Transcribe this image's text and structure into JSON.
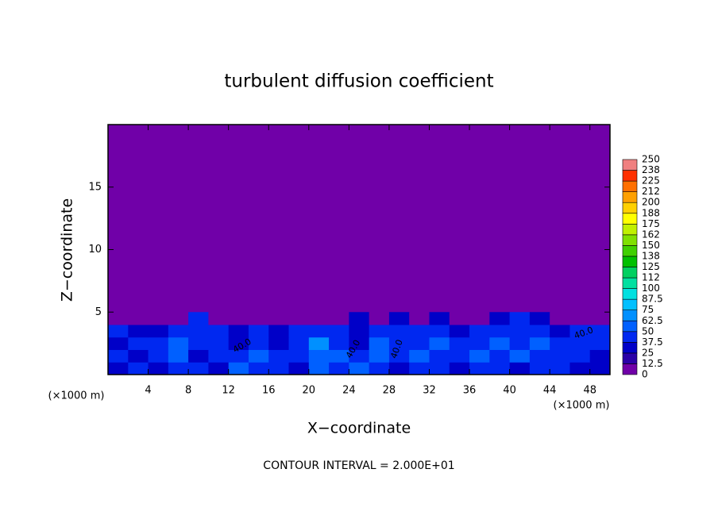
{
  "chart_data": {
    "type": "contour",
    "title": "turbulent diffusion coefficient",
    "x_label": "X−coordinate",
    "y_label": "Z−coordinate",
    "x_unit": "(×1000 m)",
    "y_unit": "(×1000 m)",
    "footer": "CONTOUR INTERVAL = 2.000E+01",
    "xlim": [
      0,
      50
    ],
    "ylim": [
      0,
      20
    ],
    "xticks": [
      4,
      8,
      12,
      16,
      20,
      24,
      28,
      32,
      36,
      40,
      44,
      48
    ],
    "yticks": [
      5,
      10,
      15
    ],
    "background_color": "#7000a8",
    "levels": [
      0,
      {
        "value": 12.5,
        "label": "12.5"
      },
      25,
      {
        "value": 37.5,
        "label": "37.5"
      },
      50,
      {
        "value": 62.5,
        "label": "62.5"
      },
      75,
      {
        "value": 87.5,
        "label": "87.5"
      },
      100,
      {
        "value": 112.5,
        "label": "112"
      },
      125,
      {
        "value": 137.5,
        "label": "138"
      },
      150,
      {
        "value": 162.5,
        "label": "162"
      },
      175,
      {
        "value": 187.5,
        "label": "188"
      },
      200,
      {
        "value": 212.5,
        "label": "212"
      },
      225,
      {
        "value": 237.5,
        "label": "238"
      },
      250
    ],
    "level_colors": [
      "#7000a8",
      "#2a00a8",
      "#0000c8",
      "#0028f0",
      "#0060ff",
      "#0090ff",
      "#00c0ff",
      "#00e0e0",
      "#00e0a0",
      "#00d060",
      "#00c000",
      "#40d000",
      "#80e000",
      "#c0f000",
      "#ffff00",
      "#ffd000",
      "#ffa000",
      "#ff7000",
      "#ff3000",
      "#f08080"
    ],
    "field_x_step": 2,
    "field_z_step": 1,
    "field": [
      [
        30,
        40,
        35,
        45,
        40,
        35,
        50,
        45,
        40,
        35,
        55,
        45,
        50,
        40,
        35,
        45,
        40,
        30,
        45,
        40,
        35,
        45,
        40,
        35,
        30
      ],
      [
        40,
        30,
        45,
        50,
        35,
        45,
        40,
        55,
        45,
        40,
        60,
        50,
        40,
        55,
        45,
        50,
        45,
        40,
        55,
        45,
        50,
        40,
        45,
        40,
        35
      ],
      [
        35,
        45,
        40,
        55,
        45,
        40,
        30,
        45,
        35,
        40,
        70,
        45,
        35,
        50,
        45,
        40,
        55,
        45,
        40,
        50,
        45,
        55,
        40,
        45,
        40
      ],
      [
        40,
        35,
        30,
        45,
        40,
        45,
        35,
        40,
        35,
        40,
        45,
        40,
        35,
        40,
        40,
        45,
        40,
        35,
        40,
        45,
        45,
        40,
        35,
        40,
        45
      ],
      [
        0,
        0,
        0,
        5,
        40,
        5,
        0,
        0,
        0,
        0,
        5,
        0,
        30,
        0,
        30,
        5,
        30,
        5,
        0,
        30,
        40,
        30,
        5,
        0,
        0
      ]
    ],
    "contour_labels": [
      "40.0",
      "40.0",
      "40.0",
      "40.0"
    ]
  }
}
